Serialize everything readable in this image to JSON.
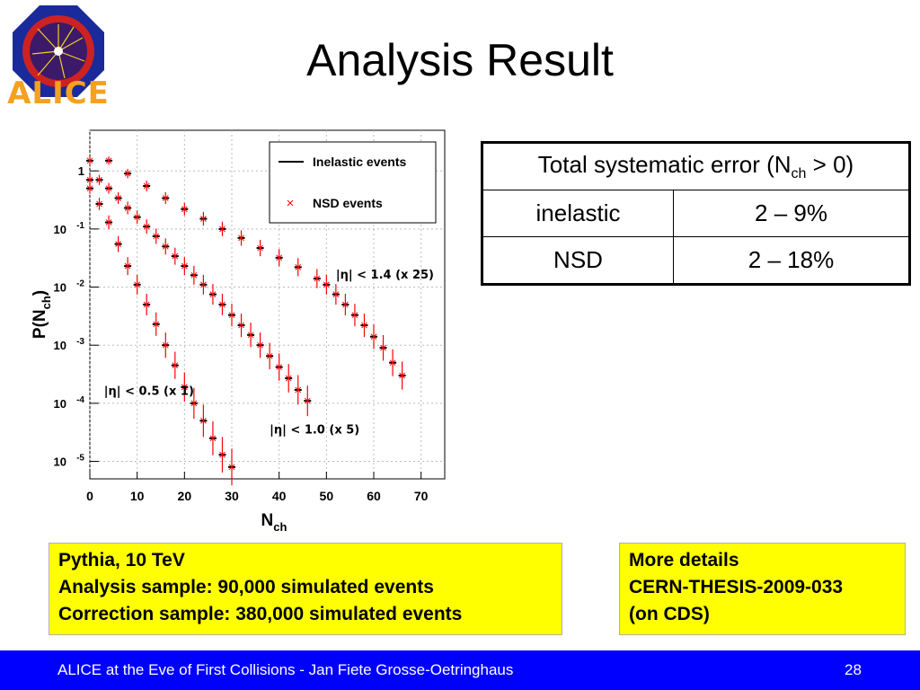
{
  "slide": {
    "title": "Analysis Result",
    "logo_text": "ALICE",
    "footer_text": "ALICE at the Eve of First Collisions  - Jan Fiete Grosse-Oetringhaus",
    "page_number": "28"
  },
  "table": {
    "header": "Total systematic error (N",
    "header_sub": "ch",
    "header_tail": " > 0)",
    "rows": [
      {
        "label": "inelastic",
        "value": "2 – 9%"
      },
      {
        "label": "NSD",
        "value": "2 – 18%"
      }
    ]
  },
  "notes": {
    "left": [
      "Pythia, 10 TeV",
      "Analysis sample: 90,000 simulated events",
      "Correction sample: 380,000 simulated events"
    ],
    "right": [
      "More details",
      "CERN-THESIS-2009-033",
      "(on CDS)"
    ]
  },
  "chart_data": {
    "type": "scatter",
    "title": "",
    "xlabel": "N",
    "xlabel_sub": "ch",
    "ylabel": "P(N",
    "ylabel_sub": "ch",
    "ylabel_tail": ")",
    "xlim": [
      0,
      75
    ],
    "ylim": [
      5e-06,
      5
    ],
    "log_y": true,
    "x_ticks": [
      "0",
      "10",
      "20",
      "30",
      "40",
      "50",
      "60",
      "70"
    ],
    "y_ticks": [
      {
        "base": "1",
        "exp": ""
      },
      {
        "base": "10",
        "exp": "-1"
      },
      {
        "base": "10",
        "exp": "-2"
      },
      {
        "base": "10",
        "exp": "-3"
      },
      {
        "base": "10",
        "exp": "-4"
      },
      {
        "base": "10",
        "exp": "-5"
      }
    ],
    "legend": {
      "position": "top-right",
      "entries": [
        {
          "name": "Inelastic events",
          "marker": "line"
        },
        {
          "name": "NSD events",
          "marker": "cross"
        }
      ]
    },
    "colors": {
      "inelastic": "#000000",
      "nsd": "#ff0000"
    },
    "annotations": [
      "|η| < 0.5 (x 1)",
      "|η| < 1.0 (x 5)",
      "|η| < 1.4 (x 25)"
    ],
    "series": [
      {
        "label_index": 0,
        "x": [
          0,
          2,
          4,
          6,
          8,
          10,
          12,
          14,
          16,
          18,
          20,
          22,
          24,
          26,
          28,
          30
        ],
        "y": [
          0.5,
          0.27,
          0.13,
          0.055,
          0.023,
          0.011,
          0.005,
          0.0023,
          0.001,
          0.00045,
          0.00019,
          0.0001,
          5e-05,
          2.5e-05,
          1.3e-05,
          8e-06
        ]
      },
      {
        "label_index": 1,
        "x": [
          0,
          2,
          4,
          6,
          8,
          10,
          12,
          14,
          16,
          18,
          20,
          22,
          24,
          26,
          28,
          30,
          32,
          34,
          36,
          38,
          40,
          42,
          44,
          46
        ],
        "y": [
          0.7,
          0.7,
          0.5,
          0.34,
          0.23,
          0.16,
          0.11,
          0.075,
          0.05,
          0.034,
          0.023,
          0.016,
          0.011,
          0.0075,
          0.005,
          0.0033,
          0.0022,
          0.0015,
          0.001,
          0.00065,
          0.00042,
          0.00027,
          0.00017,
          0.00011
        ]
      },
      {
        "label_index": 2,
        "x": [
          0,
          4,
          8,
          12,
          16,
          20,
          24,
          28,
          32,
          36,
          40,
          44,
          48,
          50,
          52,
          54,
          56,
          58,
          60,
          62,
          64,
          66
        ],
        "y": [
          1.5,
          1.5,
          0.9,
          0.55,
          0.34,
          0.22,
          0.15,
          0.1,
          0.07,
          0.047,
          0.032,
          0.022,
          0.014,
          0.011,
          0.0075,
          0.005,
          0.0033,
          0.0022,
          0.0014,
          0.0009,
          0.0005,
          0.0003
        ]
      }
    ]
  }
}
